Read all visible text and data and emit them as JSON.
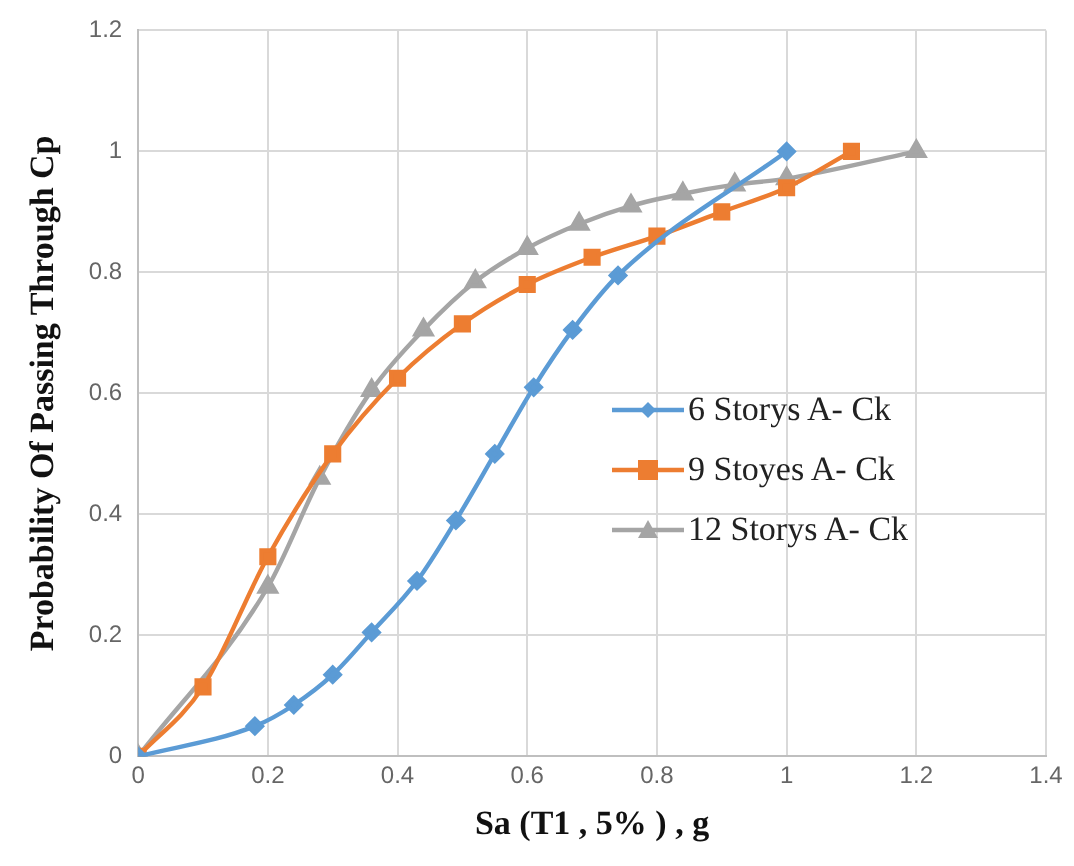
{
  "chart_data": {
    "type": "line",
    "xlabel": "Sa (T1 , 5% ) , g",
    "ylabel": "Probability Of Passing Through Cp",
    "xlim": [
      0,
      1.4
    ],
    "xticks": [
      0,
      0.2,
      0.4,
      0.6,
      0.8,
      1,
      1.2,
      1.4
    ],
    "ylim": [
      0,
      1.2
    ],
    "yticks": [
      0,
      0.2,
      0.4,
      0.6,
      0.8,
      1,
      1.2
    ],
    "grid": true,
    "legend": "right",
    "series": [
      {
        "name": "6 Storys A- Ck",
        "color": "#5b9bd5",
        "marker": "diamond",
        "x": [
          0,
          0.18,
          0.24,
          0.3,
          0.36,
          0.43,
          0.49,
          0.55,
          0.61,
          0.67,
          0.74,
          1
        ],
        "values": [
          0,
          0.05,
          0.085,
          0.135,
          0.205,
          0.29,
          0.39,
          0.5,
          0.61,
          0.705,
          0.795,
          1
        ]
      },
      {
        "name": "9 Stoyes A- Ck",
        "color": "#ed7d31",
        "marker": "square",
        "x": [
          0,
          0.1,
          0.2,
          0.3,
          0.4,
          0.5,
          0.6,
          0.7,
          0.8,
          0.9,
          1,
          1.1
        ],
        "values": [
          0,
          0.115,
          0.33,
          0.5,
          0.625,
          0.715,
          0.78,
          0.825,
          0.86,
          0.9,
          0.94,
          1
        ]
      },
      {
        "name": "12 Storys A- Ck",
        "color": "#a5a5a5",
        "marker": "triangle",
        "x": [
          0,
          0.2,
          0.28,
          0.36,
          0.44,
          0.52,
          0.6,
          0.68,
          0.76,
          0.84,
          0.92,
          1,
          1.2
        ],
        "values": [
          0,
          0.28,
          0.46,
          0.605,
          0.705,
          0.785,
          0.84,
          0.88,
          0.91,
          0.93,
          0.945,
          0.955,
          1
        ]
      }
    ]
  }
}
